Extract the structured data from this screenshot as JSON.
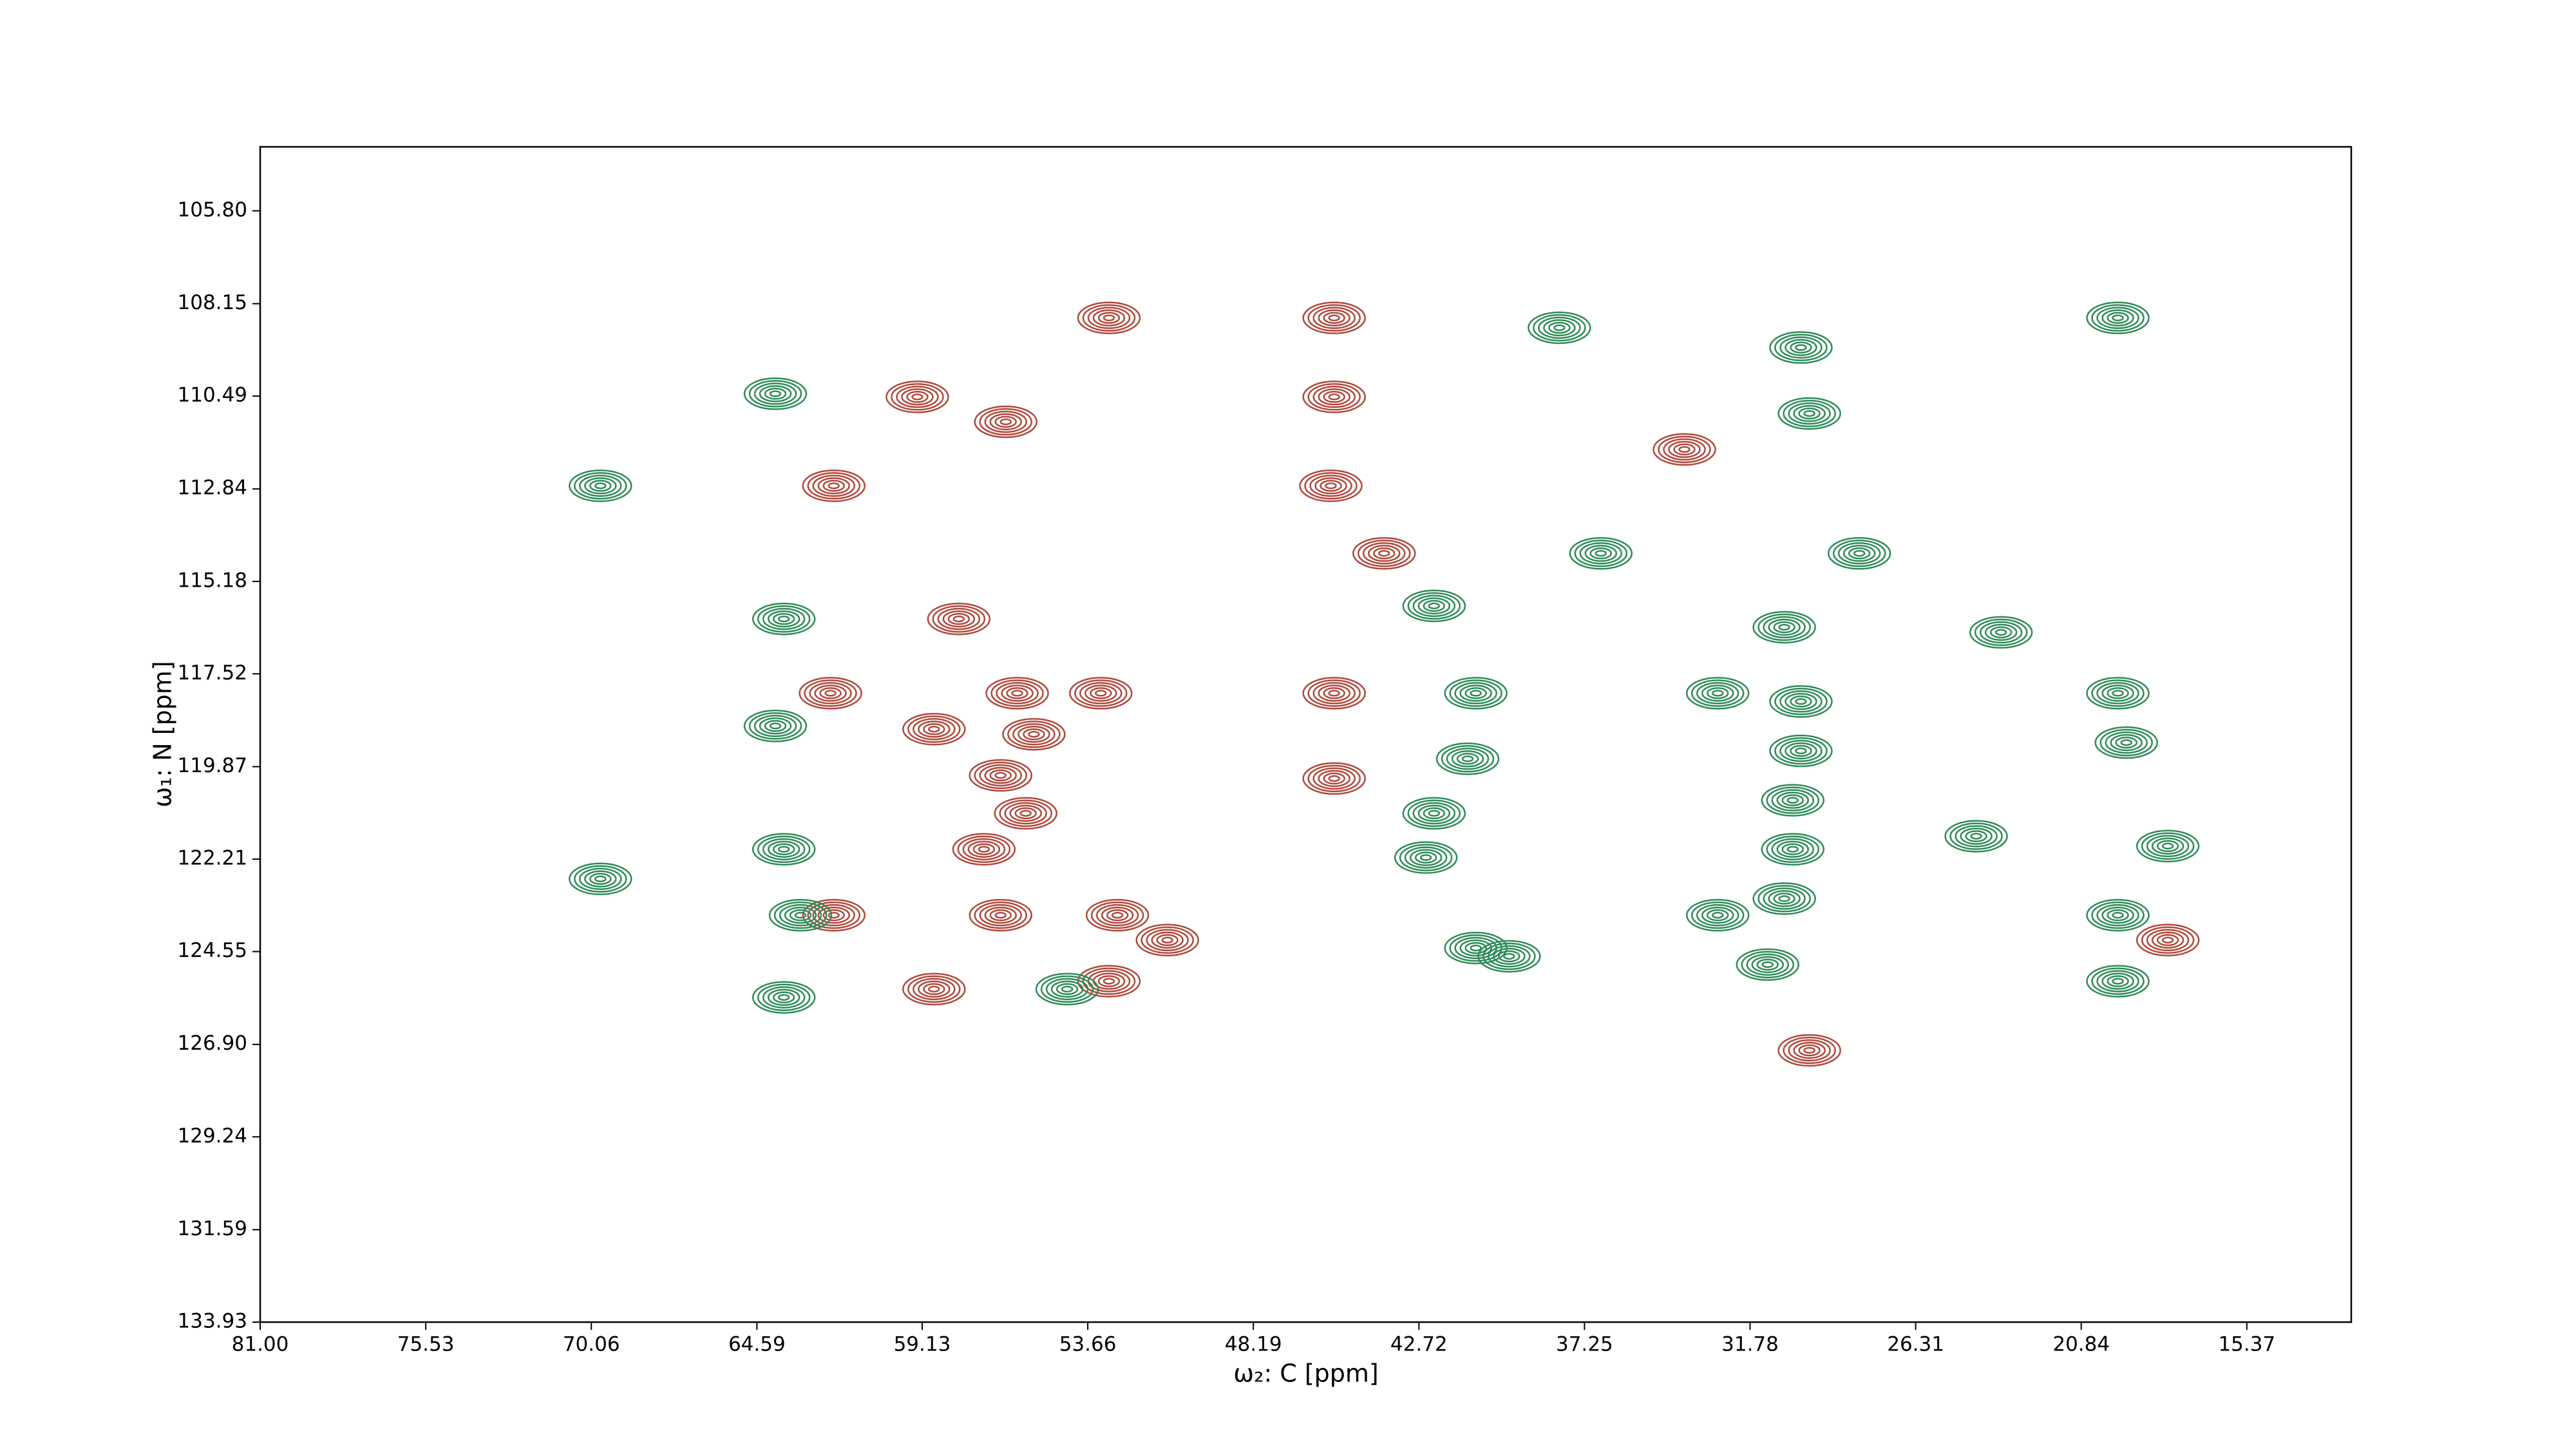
{
  "chart_data": {
    "type": "contour",
    "x_label": "ω₂: C [ppm]",
    "y_label": "ω₁: N [ppm]",
    "xlim": [
      81,
      11.92
    ],
    "ylim": [
      133.93,
      104.18
    ],
    "xticks": [
      {
        "value": 81,
        "label": "81.00"
      },
      75.53,
      70.06,
      64.59,
      59.13,
      53.66,
      48.19,
      42.72,
      37.25,
      31.78,
      26.31,
      20.84,
      15.37
    ],
    "yticks": [
      {
        "value": 105.8,
        "label": "105.80"
      },
      108.15,
      110.49,
      112.84,
      115.18,
      117.52,
      119.87,
      122.21,
      124.55,
      {
        "value": 126.9,
        "label": "126.90"
      },
      129.24,
      131.59,
      133.93
    ],
    "series": [
      {
        "color": "#b0483c",
        "x": [
          45.52,
          45.52,
          52.96,
          62.05,
          45.63,
          43.87,
          59.29,
          56.37,
          57.92,
          53.23,
          55.99,
          58.74,
          55.44,
          56.54,
          55.71,
          57.09,
          62.16,
          62.05,
          56.54,
          52.68,
          51.03,
          52.96,
          58.74,
          45.52,
          45.52,
          33.95,
          29.82,
          17.98
        ],
        "y": [
          108.51,
          110.51,
          108.51,
          112.76,
          112.76,
          114.47,
          110.51,
          111.14,
          116.13,
          118.01,
          118.01,
          118.92,
          119.05,
          120.09,
          121.05,
          121.96,
          118.01,
          123.63,
          123.63,
          123.63,
          124.26,
          125.3,
          125.5,
          118.01,
          120.17,
          111.84,
          127.05,
          124.26
        ]
      },
      {
        "color": "#2e8b57",
        "x": [
          69.76,
          63.7,
          63.98,
          63.98,
          19.63,
          30.1,
          29.82,
          38.08,
          40.84,
          41.11,
          42.22,
          42.49,
          40.84,
          39.74,
          32.85,
          30.1,
          30.1,
          30.37,
          30.37,
          32.85,
          30.65,
          31.2,
          19.63,
          19.35,
          19.63,
          19.63,
          63.7,
          63.15,
          63.7,
          69.76,
          28.17,
          36.71,
          42.22,
          30.65,
          23.49,
          24.31,
          17.98,
          54.34
        ],
        "y": [
          112.76,
          116.13,
          118.84,
          110.43,
          108.51,
          109.26,
          110.93,
          108.76,
          118.01,
          119.67,
          121.05,
          122.17,
          124.46,
          124.67,
          118.01,
          118.22,
          119.47,
          120.72,
          121.96,
          123.63,
          123.21,
          124.88,
          118.01,
          119.26,
          123.63,
          125.3,
          121.96,
          123.63,
          125.71,
          122.71,
          114.47,
          114.47,
          115.8,
          116.34,
          116.47,
          121.63,
          121.88,
          125.5
        ]
      }
    ]
  }
}
